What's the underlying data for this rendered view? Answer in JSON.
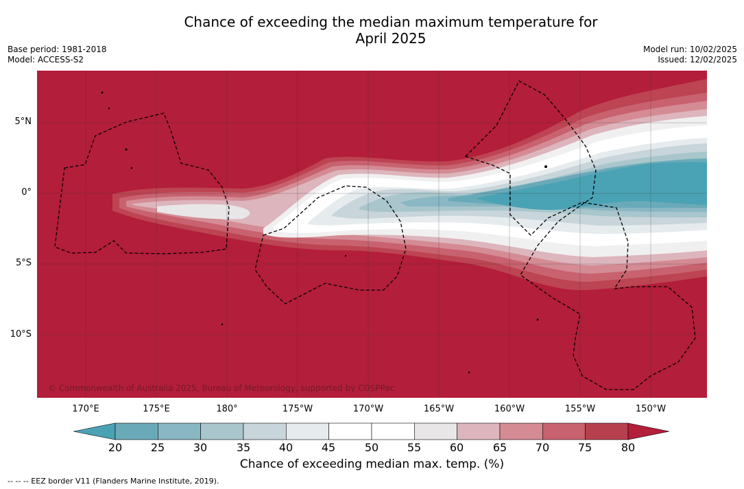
{
  "header": {
    "title_line1": "Chance of exceeding the median maximum temperature for",
    "title_line2": "April 2025",
    "base_period": "Base period: 1981-2018",
    "model": "Model: ACCESS-S2",
    "model_run": "Model run: 10/02/2025",
    "issued": "Issued: 12/02/2025"
  },
  "map": {
    "lat_labels": [
      "5°N",
      "0°",
      "5°S",
      "10°S"
    ],
    "lon_labels": [
      "170°E",
      "175°E",
      "180°",
      "175°W",
      "170°W",
      "165°W",
      "160°W",
      "155°W",
      "150°W"
    ],
    "copyright": "© Commonwealth of Australia 2025, Bureau of Meteorology, supported by COSPPac",
    "background_color": "#b31e3a",
    "eez_line_style": "dashed"
  },
  "colorbar": {
    "ticks": [
      "20",
      "25",
      "30",
      "35",
      "40",
      "45",
      "50",
      "55",
      "60",
      "65",
      "70",
      "75",
      "80"
    ],
    "label": "Chance of exceeding median max. temp. (%)",
    "colors": [
      "#4aa3b5",
      "#6aaab8",
      "#89b7c3",
      "#a9c6cd",
      "#c8d5da",
      "#e6ebee",
      "#ffffff",
      "#ffffff",
      "#e8e6e7",
      "#ddb5bd",
      "#d48b94",
      "#c8626f",
      "#b7404f",
      "#b31e3a"
    ]
  },
  "footer": {
    "legend_note": "--  --  -- EEZ border V11 (Flanders Marine Institute, 2019)."
  }
}
